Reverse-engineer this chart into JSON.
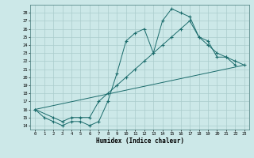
{
  "xlabel": "Humidex (Indice chaleur)",
  "bg_color": "#cce8e8",
  "grid_color": "#aacccc",
  "line_color": "#1a6b6b",
  "xlim": [
    -0.5,
    23.5
  ],
  "ylim": [
    13.5,
    29
  ],
  "yticks": [
    14,
    15,
    16,
    17,
    18,
    19,
    20,
    21,
    22,
    23,
    24,
    25,
    26,
    27,
    28
  ],
  "xticks": [
    0,
    1,
    2,
    3,
    4,
    5,
    6,
    7,
    8,
    9,
    10,
    11,
    12,
    13,
    14,
    15,
    16,
    17,
    18,
    19,
    20,
    21,
    22,
    23
  ],
  "series1_x": [
    0,
    1,
    2,
    3,
    4,
    5,
    6,
    7,
    8,
    9,
    10,
    11,
    12,
    13,
    14,
    15,
    16,
    17,
    18,
    19,
    20,
    21,
    22
  ],
  "series1_y": [
    16,
    15,
    14.5,
    14,
    14.5,
    14.5,
    14,
    14.5,
    17,
    20.5,
    24.5,
    25.5,
    26,
    23,
    27,
    28.5,
    28,
    27.5,
    25,
    24.5,
    22.5,
    22.5,
    21.5
  ],
  "series2_x": [
    0,
    2,
    3,
    4,
    5,
    6,
    7,
    8,
    9,
    10,
    11,
    12,
    13,
    14,
    15,
    16,
    17,
    18,
    19,
    20,
    21,
    22,
    23
  ],
  "series2_y": [
    16,
    15,
    14.5,
    15,
    15,
    15,
    17,
    18,
    19,
    20,
    21,
    22,
    23,
    24,
    25,
    26,
    27,
    25,
    24,
    23,
    22.5,
    22,
    21.5
  ],
  "series3_x": [
    0,
    23
  ],
  "series3_y": [
    16,
    21.5
  ]
}
